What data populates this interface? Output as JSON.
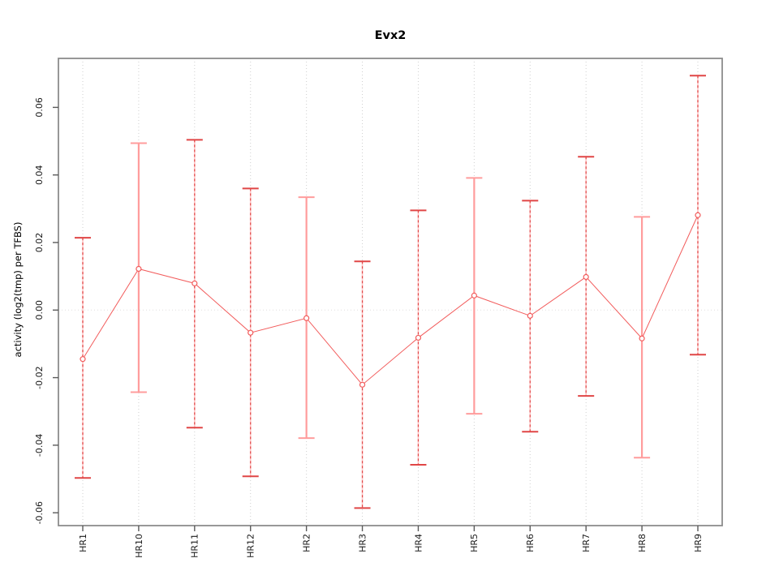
{
  "chart_data": {
    "type": "line",
    "subtype": "points-with-error-bars",
    "title": "Evx2",
    "xlabel": "",
    "ylabel": "activity (log2(tmp) per TFBS)",
    "categories": [
      "HR1",
      "HR10",
      "HR11",
      "HR12",
      "HR2",
      "HR3",
      "HR4",
      "HR5",
      "HR6",
      "HR7",
      "HR8",
      "HR9"
    ],
    "values": [
      -0.0145,
      0.0122,
      0.0079,
      -0.0067,
      -0.0024,
      -0.0221,
      -0.0082,
      0.0043,
      -0.0017,
      0.0098,
      -0.0084,
      0.0281
    ],
    "lower": [
      -0.0497,
      -0.0243,
      -0.0348,
      -0.0492,
      -0.0379,
      -0.0586,
      -0.0458,
      -0.0307,
      -0.036,
      -0.0254,
      -0.0437,
      -0.0132
    ],
    "upper": [
      0.0214,
      0.0494,
      0.0504,
      0.036,
      0.0334,
      0.0144,
      0.0295,
      0.0391,
      0.0324,
      0.0454,
      0.0276,
      0.0694
    ],
    "bar_styles": [
      "dashed",
      "solid",
      "dashed",
      "dashed",
      "solid",
      "dashed",
      "dashed",
      "solid",
      "dashed",
      "dashed",
      "solid",
      "dashed"
    ],
    "y_tick_values": [
      -0.06,
      -0.04,
      -0.02,
      0,
      0.02,
      0.04,
      0.06
    ],
    "y_tick_labels": [
      "-0.06",
      "-0.04",
      "-0.02",
      "0.00",
      "0.02",
      "0.04",
      "0.06"
    ],
    "ylim": [
      -0.0638,
      0.0745
    ],
    "legend": "none",
    "grid": "vertical dotted gridline at each category; dotted horizontal line at y=0",
    "marker": "open-circle",
    "colors": {
      "series_line": "#f25c5c",
      "marker_stroke": "#f25c5c",
      "marker_fill": "#ffffff",
      "bar_solid": "#ff9c9c",
      "bar_dashed": "#e04646",
      "bar_dashed_underlay": "#ffc4c4",
      "gridline": "#cfcfcf",
      "zero_line": "#e0dddd",
      "box_border": "#8c8c8c",
      "tick": "#5a5a5a",
      "tick_text": "#1a1a1a"
    }
  }
}
